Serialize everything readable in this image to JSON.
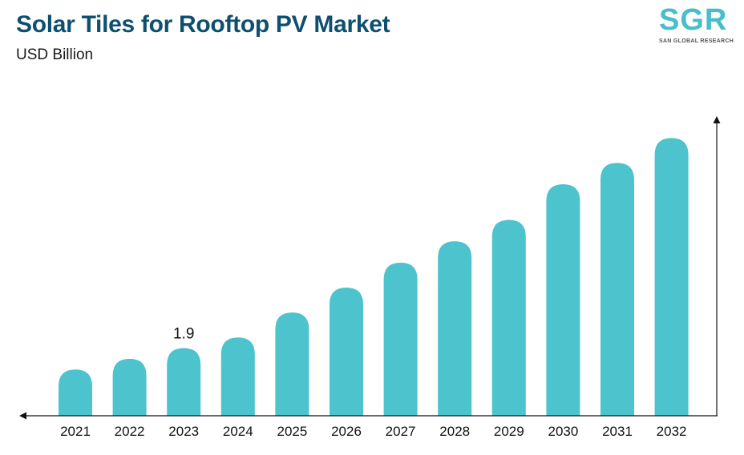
{
  "header": {
    "title": "Solar Tiles for Rooftop PV Market",
    "subtitle": "USD Billion"
  },
  "logo": {
    "mark": "SGR",
    "tagline": "SAN GLOBAL RESEARCH"
  },
  "colors": {
    "bar": "#4cc3cd",
    "title": "#0e4f6f",
    "axis": "#111111"
  },
  "chart_data": {
    "type": "bar",
    "title": "Solar Tiles for Rooftop PV Market",
    "subtitle": "USD Billion",
    "categories": [
      "2021",
      "2022",
      "2023",
      "2024",
      "2025",
      "2026",
      "2027",
      "2028",
      "2029",
      "2030",
      "2031",
      "2032"
    ],
    "values": [
      1.3,
      1.6,
      1.9,
      2.2,
      2.9,
      3.6,
      4.3,
      4.9,
      5.5,
      6.5,
      7.1,
      7.8
    ],
    "data_labels": [
      {
        "index": 2,
        "text": "1.9"
      }
    ],
    "ylim": [
      0,
      8.3
    ],
    "grid": false,
    "legend": "none",
    "bar_shape": "rounded-top"
  }
}
